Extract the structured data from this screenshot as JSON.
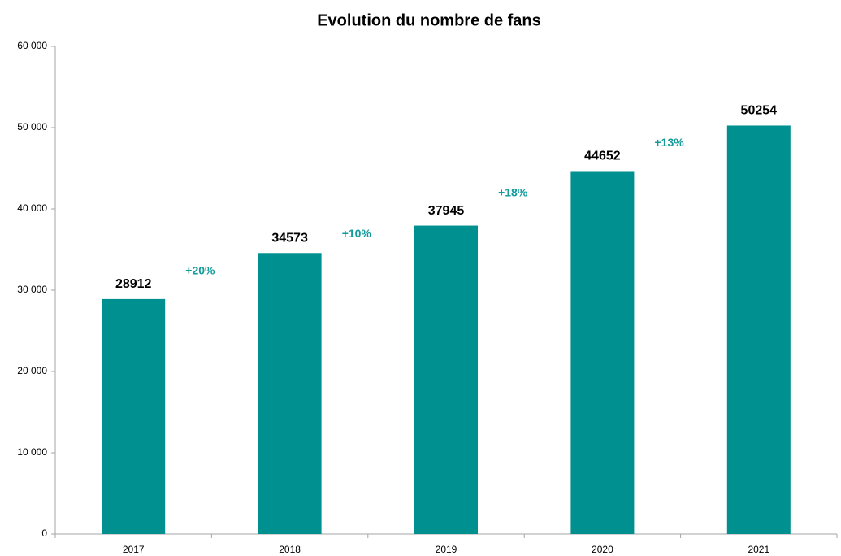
{
  "chart_data": {
    "type": "bar",
    "title": "Evolution du nombre de fans",
    "categories": [
      "2017",
      "2018",
      "2019",
      "2020",
      "2021"
    ],
    "values": [
      28912,
      34573,
      37945,
      44652,
      50254
    ],
    "color": "#009090",
    "annotations": [
      "+20%",
      "+10%",
      "+18%",
      "+13%"
    ],
    "annotation_color": "#139a9a",
    "ylim": [
      0,
      60000
    ],
    "yticks": [
      0,
      {
        "value": 10000,
        "label": "10 000"
      },
      {
        "value": 20000,
        "label": "20 000"
      },
      {
        "value": 30000,
        "label": "30 000"
      },
      {
        "value": 40000,
        "label": "40 000"
      },
      {
        "value": 50000,
        "label": "50 000"
      },
      {
        "value": 60000,
        "label": "60 000"
      }
    ],
    "grid": false
  }
}
